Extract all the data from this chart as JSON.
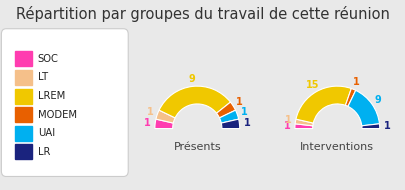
{
  "title": "Répartition par groupes du travail de cette réunion",
  "title_fontsize": 10.5,
  "background_color": "#e9e9e9",
  "legend_bg": "#ffffff",
  "groups": [
    "SOC",
    "LT",
    "LREM",
    "MODEM",
    "UAI",
    "LR"
  ],
  "colors": [
    "#ff3db0",
    "#f5c08a",
    "#f0c800",
    "#e86000",
    "#00b0f0",
    "#1a237e"
  ],
  "label_colors": [
    "#ff3db0",
    "#f5c08a",
    "#f0c800",
    "#e86000",
    "#00b0f0",
    "#1a237e"
  ],
  "presents": [
    1,
    1,
    9,
    1,
    1,
    1
  ],
  "interventions": [
    1,
    1,
    15,
    1,
    9,
    1
  ],
  "chart1_label": "Présents",
  "chart2_label": "Interventions"
}
